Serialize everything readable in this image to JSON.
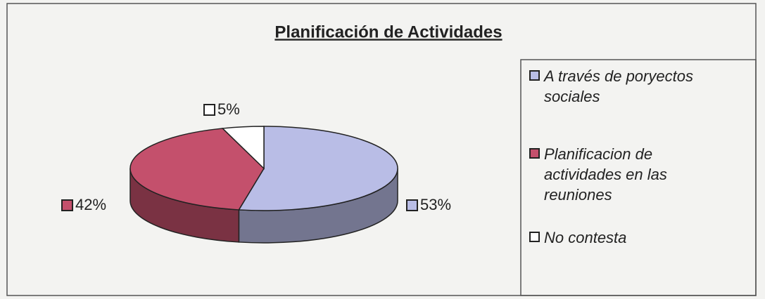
{
  "chart_data": {
    "type": "pie",
    "title": "Planificación de Actividades",
    "categories": [
      "A través de poryectos sociales",
      "Planificacion de actividades en las reuniones",
      "No contesta"
    ],
    "values": [
      53,
      42,
      5
    ],
    "value_labels": [
      "53%",
      "42%",
      "5%"
    ],
    "colors": [
      "#b9bde6",
      "#c4506c",
      "#ffffff"
    ],
    "legend": "right"
  }
}
